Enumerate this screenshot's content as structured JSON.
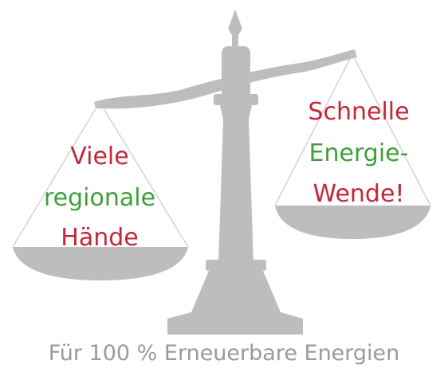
{
  "left_pan": {
    "lines": [
      "Viele",
      "regionale",
      "Hände"
    ]
  },
  "right_pan": {
    "lines": [
      "Schnelle",
      "Energie-",
      "Wende!"
    ]
  },
  "caption": "Für 100 % Erneuerbare Energien"
}
